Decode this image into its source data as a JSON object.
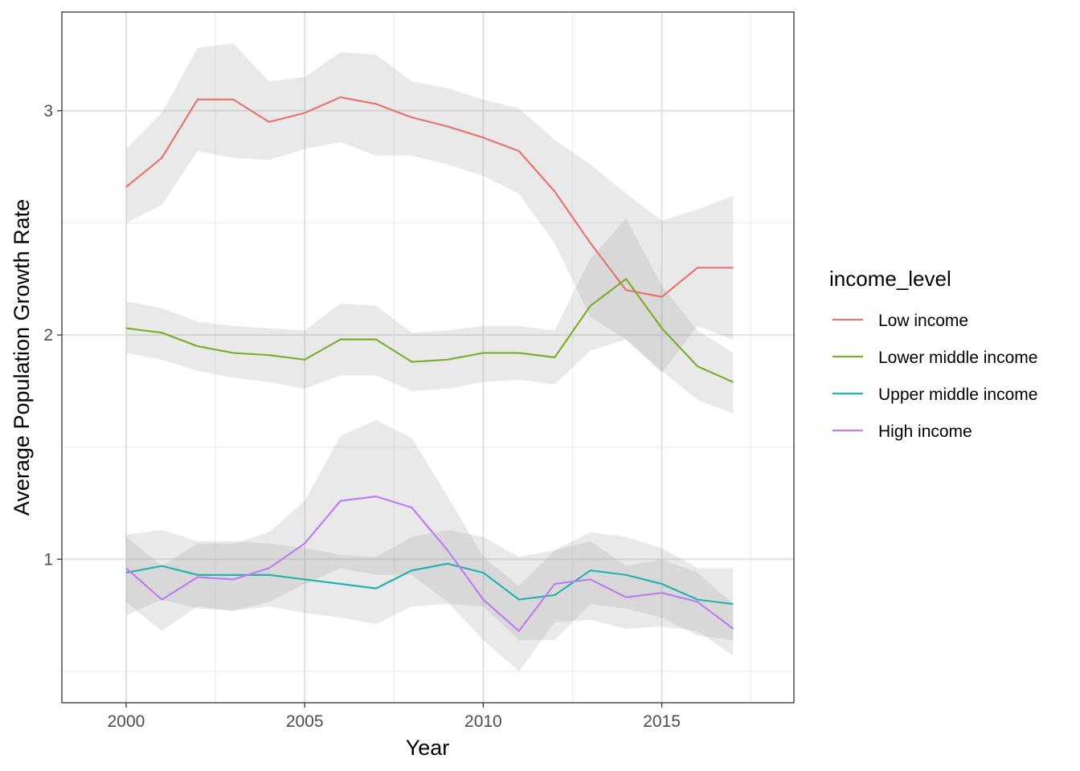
{
  "chart_data": {
    "type": "line",
    "xlabel": "Year",
    "ylabel": "Average Population Growth Rate",
    "xlim": [
      1998.2,
      2018.7
    ],
    "ylim": [
      0.36,
      3.44
    ],
    "x_ticks": [
      2000,
      2005,
      2010,
      2015
    ],
    "x_tick_labels": [
      "2000",
      "2005",
      "2010",
      "2015"
    ],
    "y_ticks": [
      1,
      2,
      3
    ],
    "y_tick_labels": [
      "1",
      "2",
      "3"
    ],
    "x_minor_ticks": [
      2002.5,
      2007.5,
      2012.5,
      2017.5
    ],
    "y_minor_ticks": [
      0.5,
      1.5,
      2.5
    ],
    "grid": true,
    "legend": {
      "title": "income_level",
      "position": "right"
    },
    "x": [
      2000,
      2001,
      2002,
      2003,
      2004,
      2005,
      2006,
      2007,
      2008,
      2009,
      2010,
      2011,
      2012,
      2013,
      2014,
      2015,
      2016,
      2017
    ],
    "series": [
      {
        "name": "Low income",
        "color": "#E7766E",
        "values": [
          2.66,
          2.79,
          3.05,
          3.05,
          2.95,
          2.99,
          3.06,
          3.03,
          2.97,
          2.93,
          2.88,
          2.82,
          2.64,
          2.41,
          2.2,
          2.17,
          2.3,
          2.3
        ],
        "ci_low": [
          2.5,
          2.58,
          2.82,
          2.79,
          2.78,
          2.83,
          2.86,
          2.8,
          2.8,
          2.76,
          2.71,
          2.63,
          2.41,
          2.08,
          1.98,
          1.83,
          2.04,
          1.98
        ],
        "ci_high": [
          2.83,
          2.99,
          3.28,
          3.3,
          3.13,
          3.15,
          3.26,
          3.25,
          3.13,
          3.1,
          3.05,
          3.01,
          2.87,
          2.76,
          2.63,
          2.51,
          2.56,
          2.62
        ]
      },
      {
        "name": "Lower middle income",
        "color": "#7CAE2E",
        "values": [
          2.03,
          2.01,
          1.95,
          1.92,
          1.91,
          1.89,
          1.98,
          1.98,
          1.88,
          1.89,
          1.92,
          1.92,
          1.9,
          2.13,
          2.25,
          2.03,
          1.86,
          1.79
        ],
        "ci_low": [
          1.92,
          1.89,
          1.84,
          1.81,
          1.79,
          1.76,
          1.82,
          1.82,
          1.75,
          1.76,
          1.79,
          1.8,
          1.78,
          1.93,
          1.98,
          1.84,
          1.71,
          1.65
        ],
        "ci_high": [
          2.15,
          2.12,
          2.06,
          2.04,
          2.03,
          2.02,
          2.14,
          2.13,
          2.01,
          2.02,
          2.04,
          2.04,
          2.02,
          2.34,
          2.52,
          2.22,
          2.02,
          1.92
        ]
      },
      {
        "name": "Upper middle income",
        "color": "#27B2B0",
        "values": [
          0.94,
          0.97,
          0.93,
          0.93,
          0.93,
          0.91,
          0.89,
          0.87,
          0.95,
          0.98,
          0.94,
          0.82,
          0.84,
          0.95,
          0.93,
          0.89,
          0.82,
          0.8
        ],
        "ci_low": [
          0.75,
          0.82,
          0.78,
          0.77,
          0.79,
          0.76,
          0.74,
          0.71,
          0.79,
          0.8,
          0.79,
          0.64,
          0.64,
          0.8,
          0.78,
          0.74,
          0.66,
          0.64
        ],
        "ci_high": [
          1.11,
          1.13,
          1.08,
          1.08,
          1.07,
          1.05,
          1.02,
          1.01,
          1.1,
          1.13,
          1.1,
          1.01,
          1.04,
          1.12,
          1.1,
          1.05,
          0.96,
          0.96
        ]
      },
      {
        "name": "High income",
        "color": "#BF7DF0",
        "values": [
          0.96,
          0.82,
          0.92,
          0.91,
          0.96,
          1.07,
          1.26,
          1.28,
          1.23,
          1.04,
          0.82,
          0.68,
          0.89,
          0.91,
          0.83,
          0.85,
          0.81,
          0.69
        ],
        "ci_low": [
          0.81,
          0.68,
          0.79,
          0.77,
          0.81,
          0.89,
          0.96,
          0.93,
          0.93,
          0.81,
          0.64,
          0.5,
          0.72,
          0.73,
          0.69,
          0.7,
          0.68,
          0.57
        ],
        "ci_high": [
          1.1,
          0.97,
          1.07,
          1.07,
          1.12,
          1.26,
          1.55,
          1.62,
          1.54,
          1.28,
          1.01,
          0.88,
          1.04,
          1.08,
          0.97,
          1.0,
          0.94,
          0.8
        ]
      }
    ]
  }
}
